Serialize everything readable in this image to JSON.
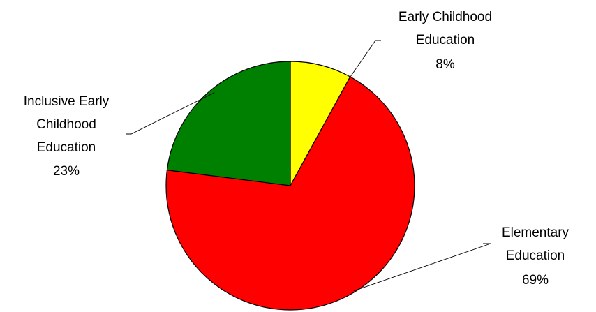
{
  "chart_data": {
    "type": "pie",
    "start": "12 o'clock",
    "direction": "clockwise",
    "legend": "none",
    "slices": [
      {
        "name": "Early Childhood Education",
        "label_lines": [
          "Early Childhood",
          "Education"
        ],
        "percent_label": "8%",
        "value": 8,
        "color": "#ffff00"
      },
      {
        "name": "Elementary Education",
        "label_lines": [
          "Elementary",
          "Education"
        ],
        "percent_label": "69%",
        "value": 69,
        "color": "#ff0000"
      },
      {
        "name": "Inclusive Early Childhood Education",
        "label_lines": [
          "Inclusive Early",
          "Childhood",
          "Education"
        ],
        "percent_label": "23%",
        "value": 23,
        "color": "#008000"
      }
    ]
  }
}
